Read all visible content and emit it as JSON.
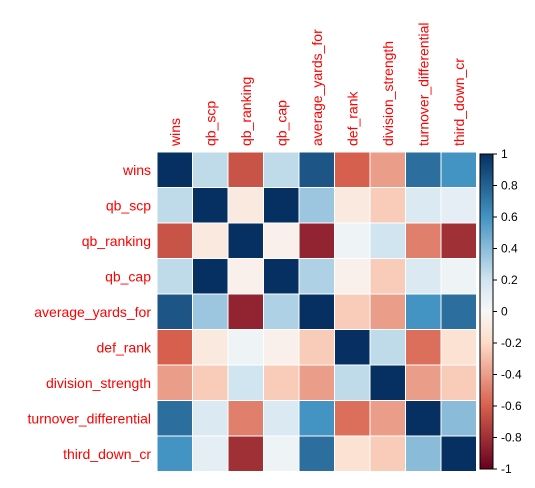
{
  "chart_data": {
    "type": "heatmap",
    "title": "",
    "variables": [
      "wins",
      "qb_scp",
      "qb_ranking",
      "qb_cap",
      "average_yards_for",
      "def_rank",
      "division_strength",
      "turnover_differential",
      "third_down_cr"
    ],
    "matrix": [
      [
        1.0,
        0.25,
        -0.65,
        0.25,
        0.85,
        -0.6,
        -0.4,
        0.75,
        0.6
      ],
      [
        0.25,
        1.0,
        -0.1,
        1.0,
        0.35,
        -0.1,
        -0.25,
        0.15,
        0.1
      ],
      [
        -0.65,
        -0.1,
        1.0,
        -0.05,
        -0.85,
        0.05,
        0.2,
        -0.5,
        -0.8
      ],
      [
        0.25,
        1.0,
        -0.05,
        1.0,
        0.3,
        -0.05,
        -0.25,
        0.15,
        0.05
      ],
      [
        0.85,
        0.35,
        -0.85,
        0.3,
        1.0,
        -0.25,
        -0.4,
        0.6,
        0.75
      ],
      [
        -0.6,
        -0.1,
        0.05,
        -0.05,
        -0.25,
        1.0,
        0.25,
        -0.55,
        -0.15
      ],
      [
        -0.4,
        -0.25,
        0.2,
        -0.25,
        -0.4,
        0.25,
        1.0,
        -0.4,
        -0.25
      ],
      [
        0.75,
        0.15,
        -0.5,
        0.15,
        0.6,
        -0.55,
        -0.4,
        1.0,
        0.4
      ],
      [
        0.6,
        0.1,
        -0.8,
        0.05,
        0.75,
        -0.15,
        -0.25,
        0.4,
        1.0
      ]
    ],
    "colorbar": {
      "ticks": [
        1,
        0.8,
        0.6,
        0.4,
        0.2,
        0,
        -0.2,
        -0.4,
        -0.6,
        -0.8,
        -1
      ],
      "range": [
        -1,
        1
      ]
    },
    "colors": {
      "label_text": "#ff0000",
      "grid_line": "#ffffff",
      "colorbar_border": "#000000",
      "scale_neg_strong": "#67001f",
      "scale_neg_mid": "#d6604d",
      "scale_neg_light": "#fddbc7",
      "scale_zero": "#f7f7f7",
      "scale_pos_light": "#d1e5f0",
      "scale_pos_mid": "#4393c3",
      "scale_pos_strong": "#053061"
    }
  }
}
